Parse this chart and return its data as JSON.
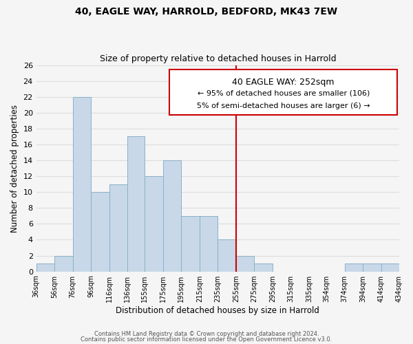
{
  "title": "40, EAGLE WAY, HARROLD, BEDFORD, MK43 7EW",
  "subtitle": "Size of property relative to detached houses in Harrold",
  "xlabel": "Distribution of detached houses by size in Harrold",
  "ylabel": "Number of detached properties",
  "bin_edges": [
    36,
    56,
    76,
    96,
    116,
    136,
    155,
    175,
    195,
    215,
    235,
    255,
    275,
    295,
    315,
    335,
    354,
    374,
    394,
    414,
    434
  ],
  "bin_labels": [
    "36sqm",
    "56sqm",
    "76sqm",
    "96sqm",
    "116sqm",
    "136sqm",
    "155sqm",
    "175sqm",
    "195sqm",
    "215sqm",
    "235sqm",
    "255sqm",
    "275sqm",
    "295sqm",
    "315sqm",
    "335sqm",
    "354sqm",
    "374sqm",
    "394sqm",
    "414sqm",
    "434sqm"
  ],
  "counts": [
    1,
    2,
    22,
    10,
    11,
    17,
    12,
    14,
    7,
    7,
    4,
    2,
    1,
    0,
    0,
    0,
    0,
    1,
    1,
    1
  ],
  "bar_color": "#c8d8e8",
  "bar_edge_color": "#8ab0c8",
  "vline_x": 255,
  "vline_color": "#cc0000",
  "ylim": [
    0,
    26
  ],
  "yticks": [
    0,
    2,
    4,
    6,
    8,
    10,
    12,
    14,
    16,
    18,
    20,
    22,
    24,
    26
  ],
  "annotation_title": "40 EAGLE WAY: 252sqm",
  "annotation_line1": "← 95% of detached houses are smaller (106)",
  "annotation_line2": "5% of semi-detached houses are larger (6) →",
  "annotation_box_color": "#ffffff",
  "annotation_box_edge": "#cc0000",
  "footnote1": "Contains HM Land Registry data © Crown copyright and database right 2024.",
  "footnote2": "Contains public sector information licensed under the Open Government Licence v3.0.",
  "grid_color": "#dddddd",
  "background_color": "#f5f5f5",
  "title_fontsize": 10,
  "subtitle_fontsize": 9
}
